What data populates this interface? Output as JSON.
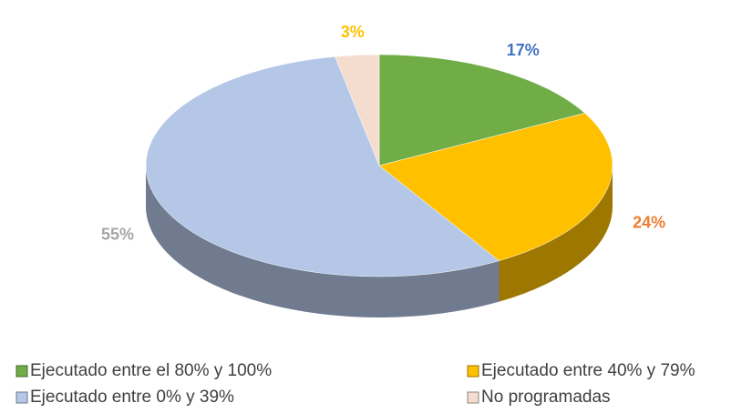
{
  "chart_data": {
    "type": "pie3d",
    "series": [
      {
        "name": "Ejecutado entre el 80% y 100%",
        "color": "#70ad47",
        "label_color": "#4472c4",
        "values": [
          17
        ],
        "value_labels": [
          "17%"
        ]
      },
      {
        "name": "Ejecutado entre 40% y 79%",
        "color": "#ffc000",
        "label_color": "#ed7d31",
        "values": [
          24
        ],
        "value_labels": [
          "24%"
        ]
      },
      {
        "name": "Ejecutado entre 0% y 39%",
        "color": "#b4c7e7",
        "label_color": "#a5a5a5",
        "values": [
          55
        ],
        "value_labels": [
          "55%"
        ]
      },
      {
        "name": "No programadas",
        "color": "#f4dccf",
        "label_color": "#ffc000",
        "values": [
          3
        ],
        "value_labels": [
          "3%"
        ]
      }
    ]
  }
}
